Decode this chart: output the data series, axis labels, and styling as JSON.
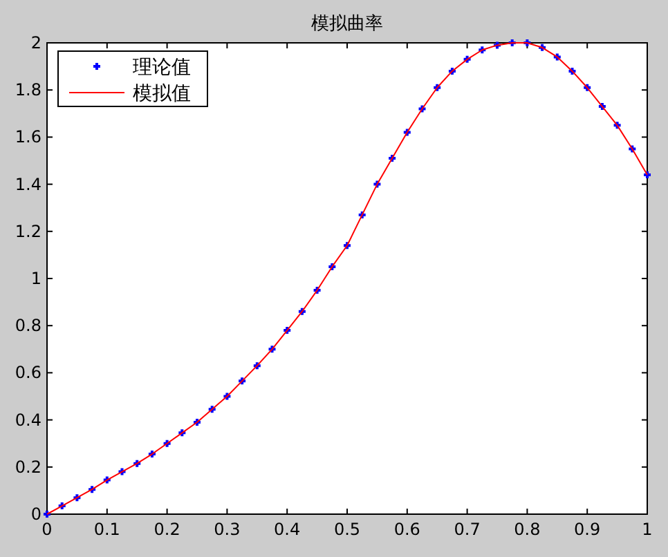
{
  "chart_data": {
    "type": "line",
    "title": "模拟曲率",
    "x": [
      0,
      0.025,
      0.05,
      0.075,
      0.1,
      0.125,
      0.15,
      0.175,
      0.2,
      0.225,
      0.25,
      0.275,
      0.3,
      0.325,
      0.35,
      0.375,
      0.4,
      0.425,
      0.45,
      0.475,
      0.5,
      0.525,
      0.55,
      0.575,
      0.6,
      0.625,
      0.65,
      0.675,
      0.7,
      0.725,
      0.75,
      0.775,
      0.8,
      0.825,
      0.85,
      0.875,
      0.9,
      0.925,
      0.95,
      0.975,
      1
    ],
    "series": [
      {
        "name": "理论值",
        "type": "scatter",
        "color": "#0000ff",
        "marker": "cross",
        "values": [
          0,
          0.035,
          0.07,
          0.105,
          0.145,
          0.18,
          0.215,
          0.255,
          0.3,
          0.345,
          0.39,
          0.445,
          0.5,
          0.565,
          0.63,
          0.7,
          0.78,
          0.86,
          0.95,
          1.05,
          1.14,
          1.27,
          1.4,
          1.51,
          1.62,
          1.72,
          1.81,
          1.88,
          1.93,
          1.97,
          1.99,
          2,
          2,
          1.98,
          1.94,
          1.88,
          1.81,
          1.73,
          1.65,
          1.55,
          1.44
        ]
      },
      {
        "name": "模拟值",
        "color": "#ff0000",
        "line_style": "solid",
        "values": [
          0,
          0.035,
          0.07,
          0.105,
          0.145,
          0.18,
          0.215,
          0.255,
          0.3,
          0.345,
          0.39,
          0.445,
          0.5,
          0.565,
          0.63,
          0.7,
          0.78,
          0.86,
          0.95,
          1.05,
          1.14,
          1.27,
          1.4,
          1.51,
          1.62,
          1.72,
          1.81,
          1.88,
          1.93,
          1.97,
          1.99,
          2,
          2,
          1.98,
          1.94,
          1.88,
          1.81,
          1.73,
          1.65,
          1.55,
          1.44
        ]
      }
    ],
    "xlim": [
      0,
      1
    ],
    "xticks": [
      0,
      0.1,
      0.2,
      0.3,
      0.4,
      0.5,
      0.6,
      0.7,
      0.8,
      0.9,
      1
    ],
    "ylim": [
      0,
      2
    ],
    "yticks": [
      0,
      0.2,
      0.4,
      0.6,
      0.8,
      1,
      1.2,
      1.4,
      1.6,
      1.8,
      2
    ],
    "grid": false,
    "legend": "top left"
  }
}
